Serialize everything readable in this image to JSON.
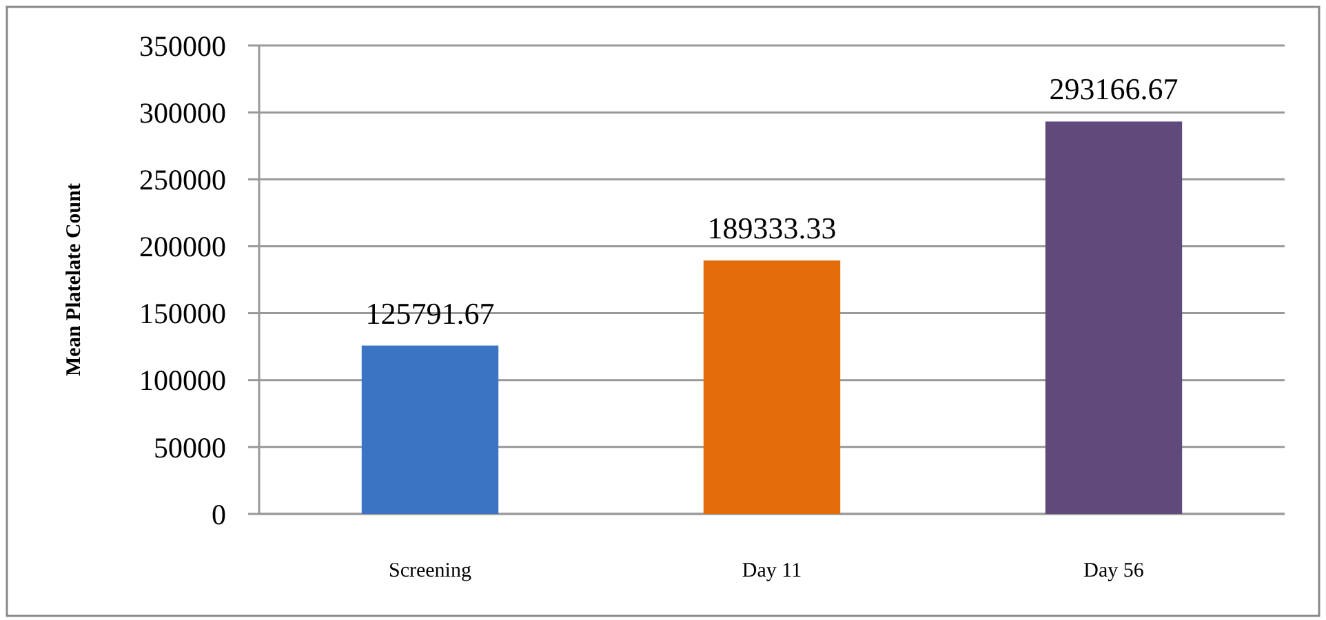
{
  "chart_data": {
    "type": "bar",
    "ylabel": "Mean Platelate Count",
    "categories": [
      "Screening",
      "Day 11",
      "Day 56"
    ],
    "values": [
      125791.67,
      189333.33,
      293166.67
    ],
    "colors": [
      "#3a74c2",
      "#e36c0a",
      "#604a7b"
    ],
    "ylim": [
      0,
      350000
    ],
    "yticks": [
      0,
      50000,
      100000,
      150000,
      200000,
      250000,
      300000,
      350000
    ],
    "grid": "y",
    "data_labels": true
  }
}
